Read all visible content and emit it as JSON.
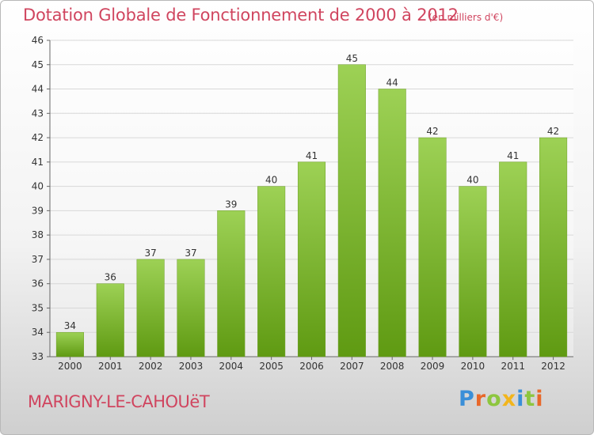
{
  "chart_data": {
    "type": "bar",
    "title": "Dotation Globale de Fonctionnement de 2000 à 2012",
    "subtitle": "(en milliers d'€)",
    "categories": [
      "2000",
      "2001",
      "2002",
      "2003",
      "2004",
      "2005",
      "2006",
      "2007",
      "2008",
      "2009",
      "2010",
      "2011",
      "2012"
    ],
    "values": [
      34,
      36,
      37,
      37,
      39,
      40,
      41,
      45,
      44,
      42,
      40,
      41,
      42
    ],
    "xlabel": "",
    "ylabel": "",
    "ylim": [
      33,
      46
    ],
    "yticks": [
      33,
      34,
      35,
      36,
      37,
      38,
      39,
      40,
      41,
      42,
      43,
      44,
      45,
      46
    ],
    "grid": true,
    "bar_color_top": "#9dd155",
    "bar_color_bottom": "#5f9a12",
    "legend": "none"
  },
  "footer": {
    "commune": "MARIGNY-LE-CAHOUëT",
    "logo_letters": [
      {
        "char": "P",
        "color": "#3a8fd8"
      },
      {
        "char": "r",
        "color": "#e8682a"
      },
      {
        "char": "o",
        "color": "#8dc63f"
      },
      {
        "char": "x",
        "color": "#f2b51c"
      },
      {
        "char": "i",
        "color": "#3a8fd8"
      },
      {
        "char": "t",
        "color": "#8dc63f"
      },
      {
        "char": "i",
        "color": "#e8682a"
      }
    ]
  },
  "colors": {
    "title": "#d0455f",
    "grid": "#d8d8d8",
    "axis": "#666666"
  }
}
